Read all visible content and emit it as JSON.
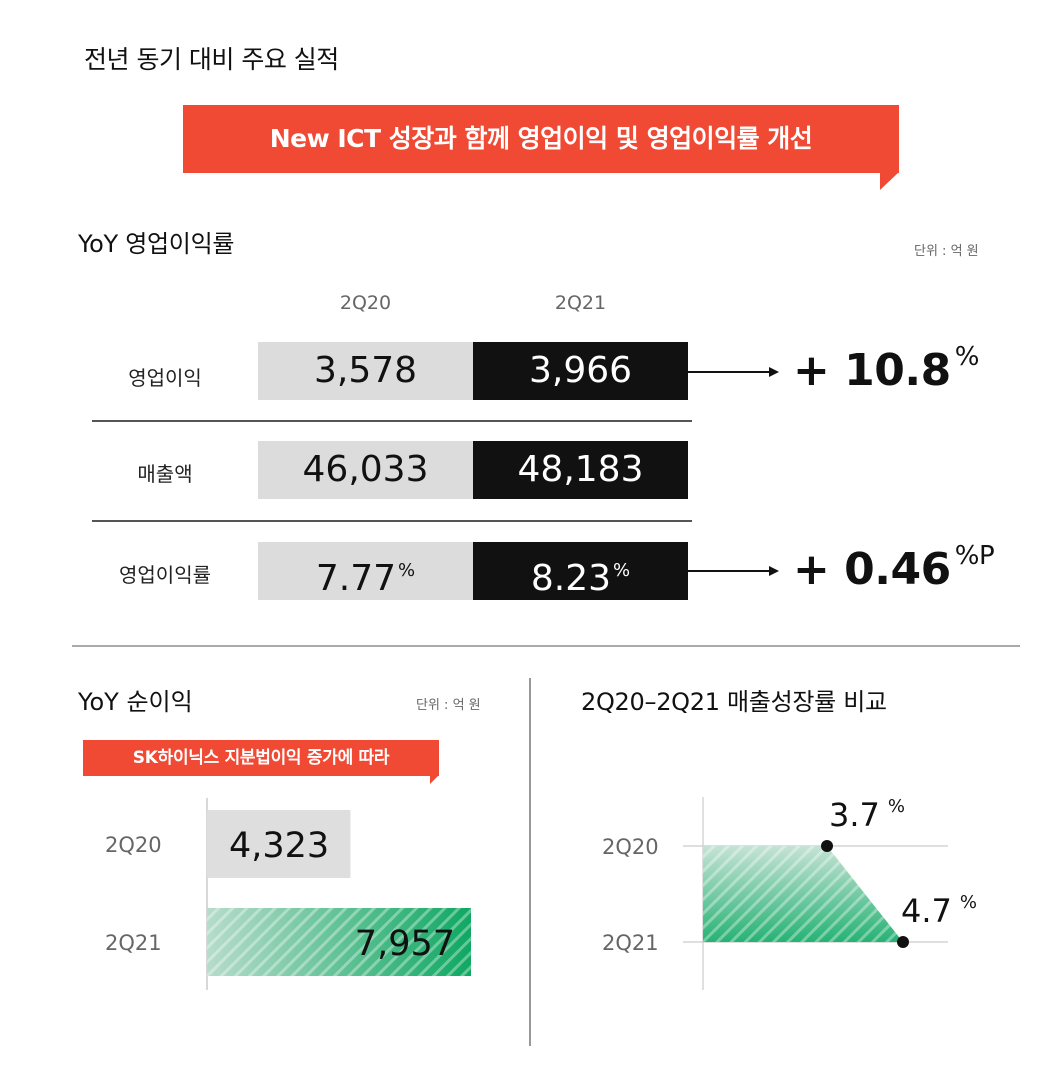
{
  "page_title": "전년 동기 대비 주요 실적",
  "banner": "New ICT 성장과 함께 영업이익 및 영업이익률 개선",
  "colors": {
    "accent_red": "#f04a35",
    "prev_gray": "#dcdcdc",
    "curr_black": "#111111",
    "green": "#1aaa6b"
  },
  "yoy_margin": {
    "title": "YoY 영업이익률",
    "unit": "단위 : 억 원",
    "columns": [
      "2Q20",
      "2Q21"
    ],
    "rows": [
      {
        "label": "영업이익",
        "prev": "3,578",
        "curr": "3,966",
        "change": "+ 10.8",
        "change_unit": "%"
      },
      {
        "label": "매출액",
        "prev": "46,033",
        "curr": "48,183"
      },
      {
        "label": "영업이익률",
        "prev": "7.77",
        "prev_unit": "%",
        "curr": "8.23",
        "curr_unit": "%",
        "change": "+ 0.46",
        "change_unit": "%P"
      }
    ]
  },
  "net_income": {
    "title": "YoY 순이익",
    "unit": "단위 : 억 원",
    "callout": "SK하이닉스 지분법이익 증가에 따라"
  },
  "growth": {
    "title": "2Q20–2Q21 매출성장률 비교"
  },
  "chart_data": [
    {
      "type": "bar",
      "orientation": "horizontal",
      "title": "YoY 순이익",
      "unit": "억 원",
      "categories": [
        "2Q20",
        "2Q21"
      ],
      "values": [
        4323,
        7957
      ],
      "labels": [
        "4,323",
        "7,957"
      ],
      "xlim": [
        0,
        8000
      ]
    },
    {
      "type": "area",
      "title": "2Q20–2Q21 매출성장률 비교",
      "categories": [
        "2Q20",
        "2Q21"
      ],
      "values": [
        3.7,
        4.7
      ],
      "labels": [
        "3.7",
        "4.7"
      ],
      "label_unit": "%",
      "xlim": [
        0,
        5.1
      ]
    }
  ]
}
